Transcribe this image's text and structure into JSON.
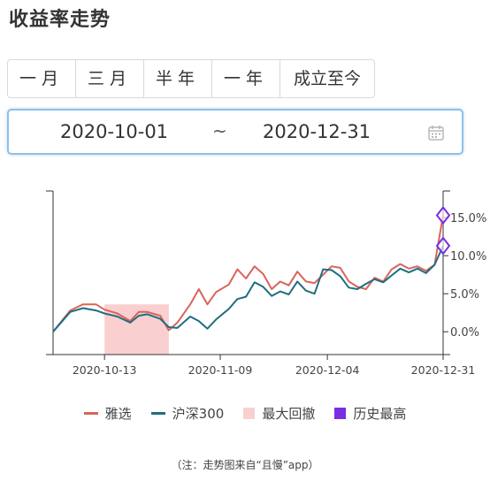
{
  "page": {
    "title": "收益率走势",
    "caption": "（注：走势图来自“且慢”app）"
  },
  "tabs": [
    {
      "label": "一月"
    },
    {
      "label": "三月"
    },
    {
      "label": "半年"
    },
    {
      "label": "一年"
    },
    {
      "label": "成立至今"
    }
  ],
  "range": {
    "start": "2020-10-01",
    "separator": "~",
    "end": "2020-12-31",
    "icon": "calendar-icon"
  },
  "legend": {
    "series_a": "雅选",
    "series_b": "沪深300",
    "drawdown": "最大回撤",
    "peak": "历史最高"
  },
  "colors": {
    "series_a": "#d9645a",
    "series_b": "#1f6e82",
    "drawdown": "#f9cfcf",
    "peak": "#7a2ee0",
    "axis": "#333333"
  },
  "chart_data": {
    "type": "line",
    "title": "",
    "xlabel": "",
    "ylabel": "",
    "x_ticks": [
      "2020-10-13",
      "2020-11-09",
      "2020-12-04",
      "2020-12-31"
    ],
    "x_range": [
      "2020-10-01",
      "2020-12-31"
    ],
    "y_axis_side": "right",
    "ylim": [
      -3.0,
      18.5
    ],
    "y_ticks": [
      0,
      5,
      10,
      15
    ],
    "y_tick_labels": [
      "0.0%",
      "5.0%",
      "10.0%",
      "15.0%"
    ],
    "grid": false,
    "legend_position": "bottom",
    "series": [
      {
        "name": "雅选",
        "color": "#d9645a",
        "points": [
          [
            "2020-10-01",
            0.0
          ],
          [
            "2020-10-05",
            2.8
          ],
          [
            "2020-10-08",
            3.6
          ],
          [
            "2020-10-11",
            3.6
          ],
          [
            "2020-10-13",
            2.9
          ],
          [
            "2020-10-16",
            2.4
          ],
          [
            "2020-10-19",
            1.4
          ],
          [
            "2020-10-21",
            2.6
          ],
          [
            "2020-10-23",
            2.6
          ],
          [
            "2020-10-26",
            2.1
          ],
          [
            "2020-10-28",
            0.2
          ],
          [
            "2020-10-30",
            1.2
          ],
          [
            "2020-11-02",
            3.6
          ],
          [
            "2020-11-04",
            5.6
          ],
          [
            "2020-11-06",
            3.6
          ],
          [
            "2020-11-08",
            5.2
          ],
          [
            "2020-11-11",
            6.2
          ],
          [
            "2020-11-13",
            8.2
          ],
          [
            "2020-11-15",
            7.0
          ],
          [
            "2020-11-17",
            8.6
          ],
          [
            "2020-11-19",
            7.6
          ],
          [
            "2020-11-21",
            5.6
          ],
          [
            "2020-11-23",
            6.6
          ],
          [
            "2020-11-25",
            6.1
          ],
          [
            "2020-11-27",
            7.9
          ],
          [
            "2020-11-29",
            6.6
          ],
          [
            "2020-12-01",
            6.4
          ],
          [
            "2020-12-03",
            7.5
          ],
          [
            "2020-12-05",
            8.6
          ],
          [
            "2020-12-07",
            8.4
          ],
          [
            "2020-12-09",
            6.6
          ],
          [
            "2020-12-11",
            5.9
          ],
          [
            "2020-12-13",
            5.6
          ],
          [
            "2020-12-15",
            7.1
          ],
          [
            "2020-12-17",
            6.6
          ],
          [
            "2020-12-19",
            8.2
          ],
          [
            "2020-12-21",
            8.9
          ],
          [
            "2020-12-23",
            8.3
          ],
          [
            "2020-12-25",
            8.6
          ],
          [
            "2020-12-27",
            8.0
          ],
          [
            "2020-12-29",
            8.8
          ],
          [
            "2020-12-31",
            15.3
          ]
        ]
      },
      {
        "name": "沪深300",
        "color": "#1f6e82",
        "points": [
          [
            "2020-10-01",
            0.0
          ],
          [
            "2020-10-05",
            2.6
          ],
          [
            "2020-10-08",
            3.1
          ],
          [
            "2020-10-11",
            2.8
          ],
          [
            "2020-10-13",
            2.4
          ],
          [
            "2020-10-16",
            2.0
          ],
          [
            "2020-10-19",
            1.2
          ],
          [
            "2020-10-21",
            2.1
          ],
          [
            "2020-10-23",
            2.3
          ],
          [
            "2020-10-26",
            1.7
          ],
          [
            "2020-10-28",
            0.6
          ],
          [
            "2020-10-30",
            0.5
          ],
          [
            "2020-11-02",
            2.0
          ],
          [
            "2020-11-04",
            1.4
          ],
          [
            "2020-11-06",
            0.4
          ],
          [
            "2020-11-08",
            1.6
          ],
          [
            "2020-11-11",
            3.0
          ],
          [
            "2020-11-13",
            4.3
          ],
          [
            "2020-11-15",
            4.6
          ],
          [
            "2020-11-17",
            6.5
          ],
          [
            "2020-11-19",
            5.9
          ],
          [
            "2020-11-21",
            4.7
          ],
          [
            "2020-11-23",
            5.3
          ],
          [
            "2020-11-25",
            4.9
          ],
          [
            "2020-11-27",
            6.6
          ],
          [
            "2020-11-29",
            5.4
          ],
          [
            "2020-12-01",
            5.0
          ],
          [
            "2020-12-03",
            8.2
          ],
          [
            "2020-12-05",
            8.1
          ],
          [
            "2020-12-07",
            7.3
          ],
          [
            "2020-12-09",
            5.8
          ],
          [
            "2020-12-11",
            5.6
          ],
          [
            "2020-12-13",
            6.3
          ],
          [
            "2020-12-15",
            6.9
          ],
          [
            "2020-12-17",
            6.5
          ],
          [
            "2020-12-19",
            7.4
          ],
          [
            "2020-12-21",
            8.3
          ],
          [
            "2020-12-23",
            7.8
          ],
          [
            "2020-12-25",
            8.3
          ],
          [
            "2020-12-27",
            7.7
          ],
          [
            "2020-12-29",
            8.8
          ],
          [
            "2020-12-31",
            11.3
          ]
        ]
      }
    ],
    "max_drawdown_range": [
      "2020-10-13",
      "2020-10-28"
    ],
    "peak_markers": [
      {
        "series": "雅选",
        "x": "2020-12-31",
        "y": 15.3
      },
      {
        "series": "沪深300",
        "x": "2020-12-31",
        "y": 11.3
      }
    ]
  }
}
